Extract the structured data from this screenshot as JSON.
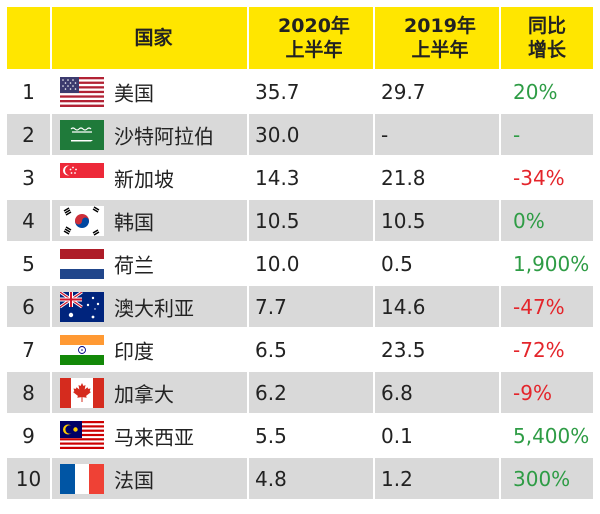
{
  "header": {
    "country": "国家",
    "h2020_line1": "2020年",
    "h2020_line2": "上半年",
    "h2019_line1": "2019年",
    "h2019_line2": "上半年",
    "growth_line1": "同比",
    "growth_line2": "增长"
  },
  "rows": [
    {
      "rank": "1",
      "flag_icon": "usa-flag-icon",
      "country": "美国",
      "v2020": "35.7",
      "v2019": "29.7",
      "growth": "20%",
      "trend": "positive"
    },
    {
      "rank": "2",
      "flag_icon": "saudi-arabia-flag-icon",
      "country": "沙特阿拉伯",
      "v2020": "30.0",
      "v2019": "-",
      "growth": "-",
      "trend": "positive"
    },
    {
      "rank": "3",
      "flag_icon": "singapore-flag-icon",
      "country": "新加坡",
      "v2020": "14.3",
      "v2019": "21.8",
      "growth": "-34%",
      "trend": "negative"
    },
    {
      "rank": "4",
      "flag_icon": "south-korea-flag-icon",
      "country": "韩国",
      "v2020": "10.5",
      "v2019": "10.5",
      "growth": "0%",
      "trend": "positive"
    },
    {
      "rank": "5",
      "flag_icon": "netherlands-flag-icon",
      "country": "荷兰",
      "v2020": "10.0",
      "v2019": "0.5",
      "growth": "1,900%",
      "trend": "positive"
    },
    {
      "rank": "6",
      "flag_icon": "australia-flag-icon",
      "country": "澳大利亚",
      "v2020": "7.7",
      "v2019": "14.6",
      "growth": "-47%",
      "trend": "negative"
    },
    {
      "rank": "7",
      "flag_icon": "india-flag-icon",
      "country": "印度",
      "v2020": "6.5",
      "v2019": "23.5",
      "growth": "-72%",
      "trend": "negative"
    },
    {
      "rank": "8",
      "flag_icon": "canada-flag-icon",
      "country": "加拿大",
      "v2020": "6.2",
      "v2019": "6.8",
      "growth": "-9%",
      "trend": "negative"
    },
    {
      "rank": "9",
      "flag_icon": "malaysia-flag-icon",
      "country": "马来西亚",
      "v2020": "5.5",
      "v2019": "0.1",
      "growth": "5,400%",
      "trend": "positive"
    },
    {
      "rank": "10",
      "flag_icon": "france-flag-icon",
      "country": "法国",
      "v2020": "4.8",
      "v2019": "1.2",
      "growth": "300%",
      "trend": "positive"
    }
  ],
  "colors": {
    "header_bg": "#ffe600",
    "alt_row_bg": "#d9d9d9",
    "positive": "#2e9c45",
    "negative": "#e4252b"
  }
}
